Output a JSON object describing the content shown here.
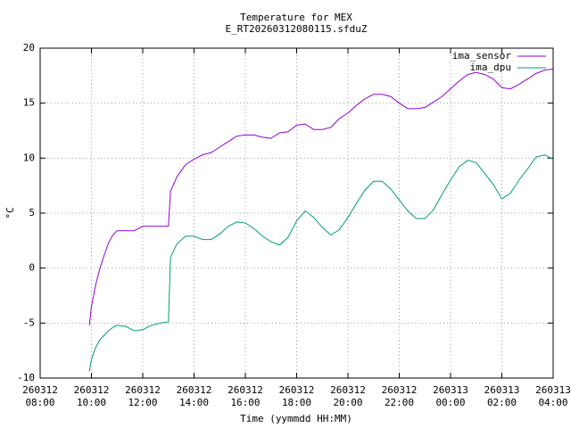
{
  "chart_data": {
    "type": "line",
    "title": "Temperature for MEX",
    "subtitle": "E_RT20260312080115.sfduZ",
    "y_label": "°C",
    "x_label": "Time (yymmdd HH:MM)",
    "x": [
      "260312 09:55",
      "260312 10:00",
      "260312 10:10",
      "260312 10:20",
      "260312 10:30",
      "260312 10:40",
      "260312 10:50",
      "260312 11:00",
      "260312 11:20",
      "260312 11:40",
      "260312 12:00",
      "260312 12:20",
      "260312 12:40",
      "260312 13:00",
      "260312 13:05",
      "260312 13:20",
      "260312 13:40",
      "260312 14:00",
      "260312 14:20",
      "260312 14:40",
      "260312 15:00",
      "260312 15:20",
      "260312 15:40",
      "260312 16:00",
      "260312 16:20",
      "260312 16:40",
      "260312 17:00",
      "260312 17:20",
      "260312 17:40",
      "260312 18:00",
      "260312 18:20",
      "260312 18:40",
      "260312 19:00",
      "260312 19:20",
      "260312 19:40",
      "260312 20:00",
      "260312 20:20",
      "260312 20:40",
      "260312 21:00",
      "260312 21:20",
      "260312 21:40",
      "260312 22:00",
      "260312 22:20",
      "260312 22:40",
      "260312 23:00",
      "260312 23:20",
      "260312 23:40",
      "260313 00:00",
      "260313 00:20",
      "260313 00:40",
      "260313 01:00",
      "260313 01:20",
      "260313 01:40",
      "260313 02:00",
      "260313 02:20",
      "260313 02:40",
      "260313 03:00",
      "260313 03:20",
      "260313 03:40",
      "260313 04:00"
    ],
    "series": [
      {
        "name": "ima_sensor",
        "color": "#9400d3",
        "values": [
          -5.2,
          -3.5,
          -1.5,
          0,
          1.2,
          2.3,
          3.0,
          3.4,
          3.4,
          3.4,
          3.8,
          3.8,
          3.8,
          3.8,
          7.0,
          8.3,
          9.4,
          9.9,
          10.3,
          10.5,
          11.0,
          11.5,
          12.0,
          12.1,
          12.1,
          11.9,
          11.8,
          12.3,
          12.4,
          13.0,
          13.1,
          12.6,
          12.6,
          12.8,
          13.6,
          14.1,
          14.8,
          15.4,
          15.8,
          15.8,
          15.6,
          15.0,
          14.5,
          14.5,
          14.6,
          15.1,
          15.6,
          16.3,
          17.0,
          17.6,
          17.8,
          17.6,
          17.2,
          16.4,
          16.3,
          16.7,
          17.2,
          17.7,
          18.0,
          18.1
        ]
      },
      {
        "name": "ima_dpu",
        "color": "#009e73",
        "values": [
          -9.4,
          -8.3,
          -7.2,
          -6.5,
          -6.1,
          -5.7,
          -5.4,
          -5.2,
          -5.3,
          -5.7,
          -5.6,
          -5.2,
          -5.0,
          -4.9,
          1.0,
          2.2,
          2.9,
          2.9,
          2.6,
          2.6,
          3.1,
          3.8,
          4.2,
          4.1,
          3.6,
          2.9,
          2.4,
          2.1,
          2.8,
          4.3,
          5.2,
          4.6,
          3.7,
          3.0,
          3.5,
          4.6,
          5.9,
          7.1,
          7.9,
          7.9,
          7.2,
          6.2,
          5.2,
          4.5,
          4.5,
          5.3,
          6.7,
          8.0,
          9.2,
          9.8,
          9.6,
          8.6,
          7.6,
          6.3,
          6.8,
          8.0,
          9.0,
          10.1,
          10.3,
          9.9
        ]
      }
    ],
    "xlim": [
      "260312 08:00",
      "260313 04:00"
    ],
    "xticks": [
      "260312\n08:00",
      "260312\n10:00",
      "260312\n12:00",
      "260312\n14:00",
      "260312\n16:00",
      "260312\n18:00",
      "260312\n20:00",
      "260312\n22:00",
      "260313\n00:00",
      "260313\n02:00",
      "260313\n04:00"
    ],
    "ylim": [
      -10,
      20
    ],
    "yticks": [
      -10,
      -5,
      0,
      5,
      10,
      15,
      20
    ],
    "grid": true,
    "legend": "top-right"
  }
}
